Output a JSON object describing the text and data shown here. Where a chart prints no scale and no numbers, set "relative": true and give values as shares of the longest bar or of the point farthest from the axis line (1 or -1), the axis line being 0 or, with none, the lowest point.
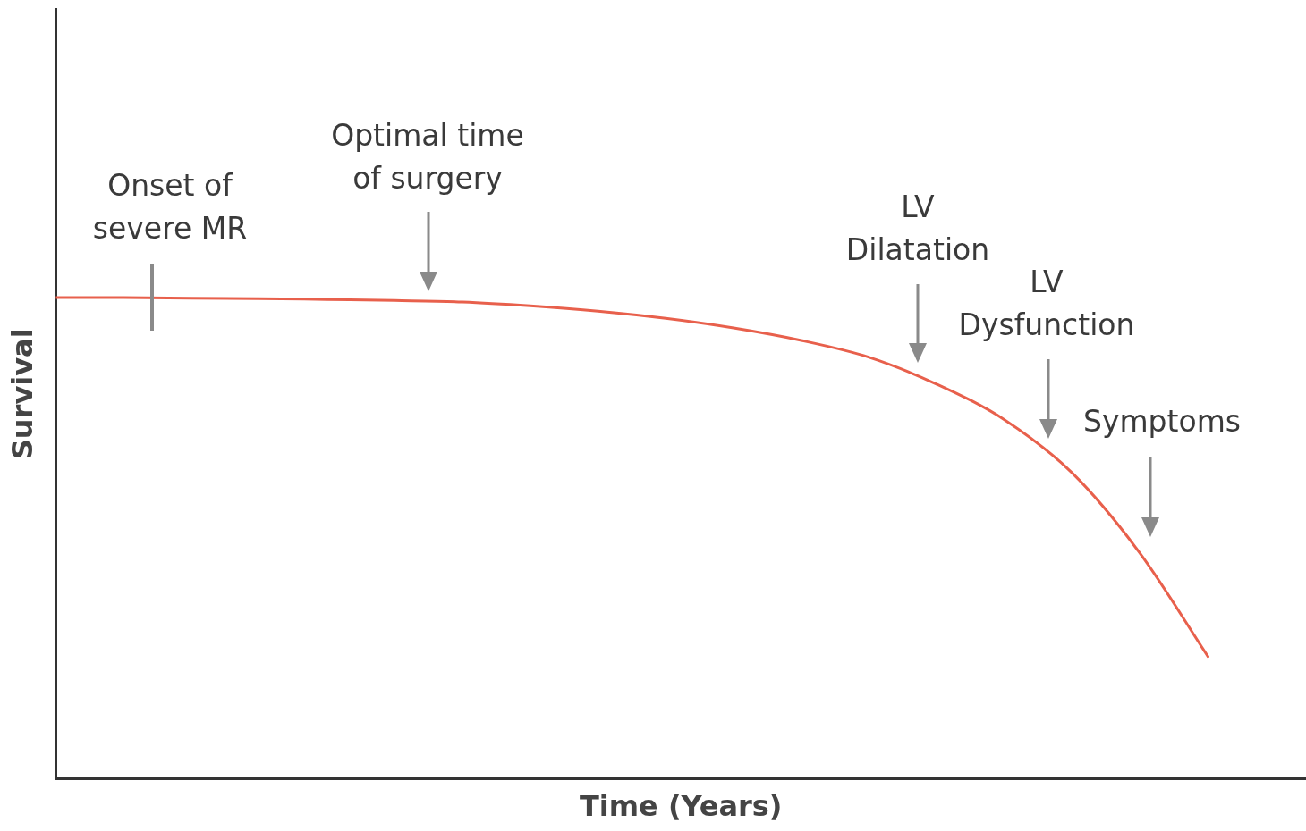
{
  "chart_data": {
    "type": "line",
    "relative": true,
    "xlabel": "Time (Years)",
    "ylabel": "Survival",
    "categories": [
      null,
      null,
      null,
      null,
      null,
      null,
      null,
      null,
      null,
      null,
      null,
      null,
      null,
      null,
      null,
      null,
      null,
      null
    ],
    "series": [
      {
        "color": "#e8604c",
        "values": [
          1,
          1,
          0.999,
          0.998,
          0.996,
          0.994,
          0.991,
          0.983,
          0.972,
          0.957,
          0.937,
          0.911,
          0.876,
          0.82,
          0.746,
          0.635,
          0.468,
          0.254
        ]
      }
    ],
    "annotations": [
      "Onset of severe MR",
      "Optimal time of surgery",
      "LV Dilatation",
      "LV Dysfunction",
      "Symptoms"
    ],
    "legend": false,
    "grid": false,
    "marker": "none",
    "line_style": "solid"
  }
}
